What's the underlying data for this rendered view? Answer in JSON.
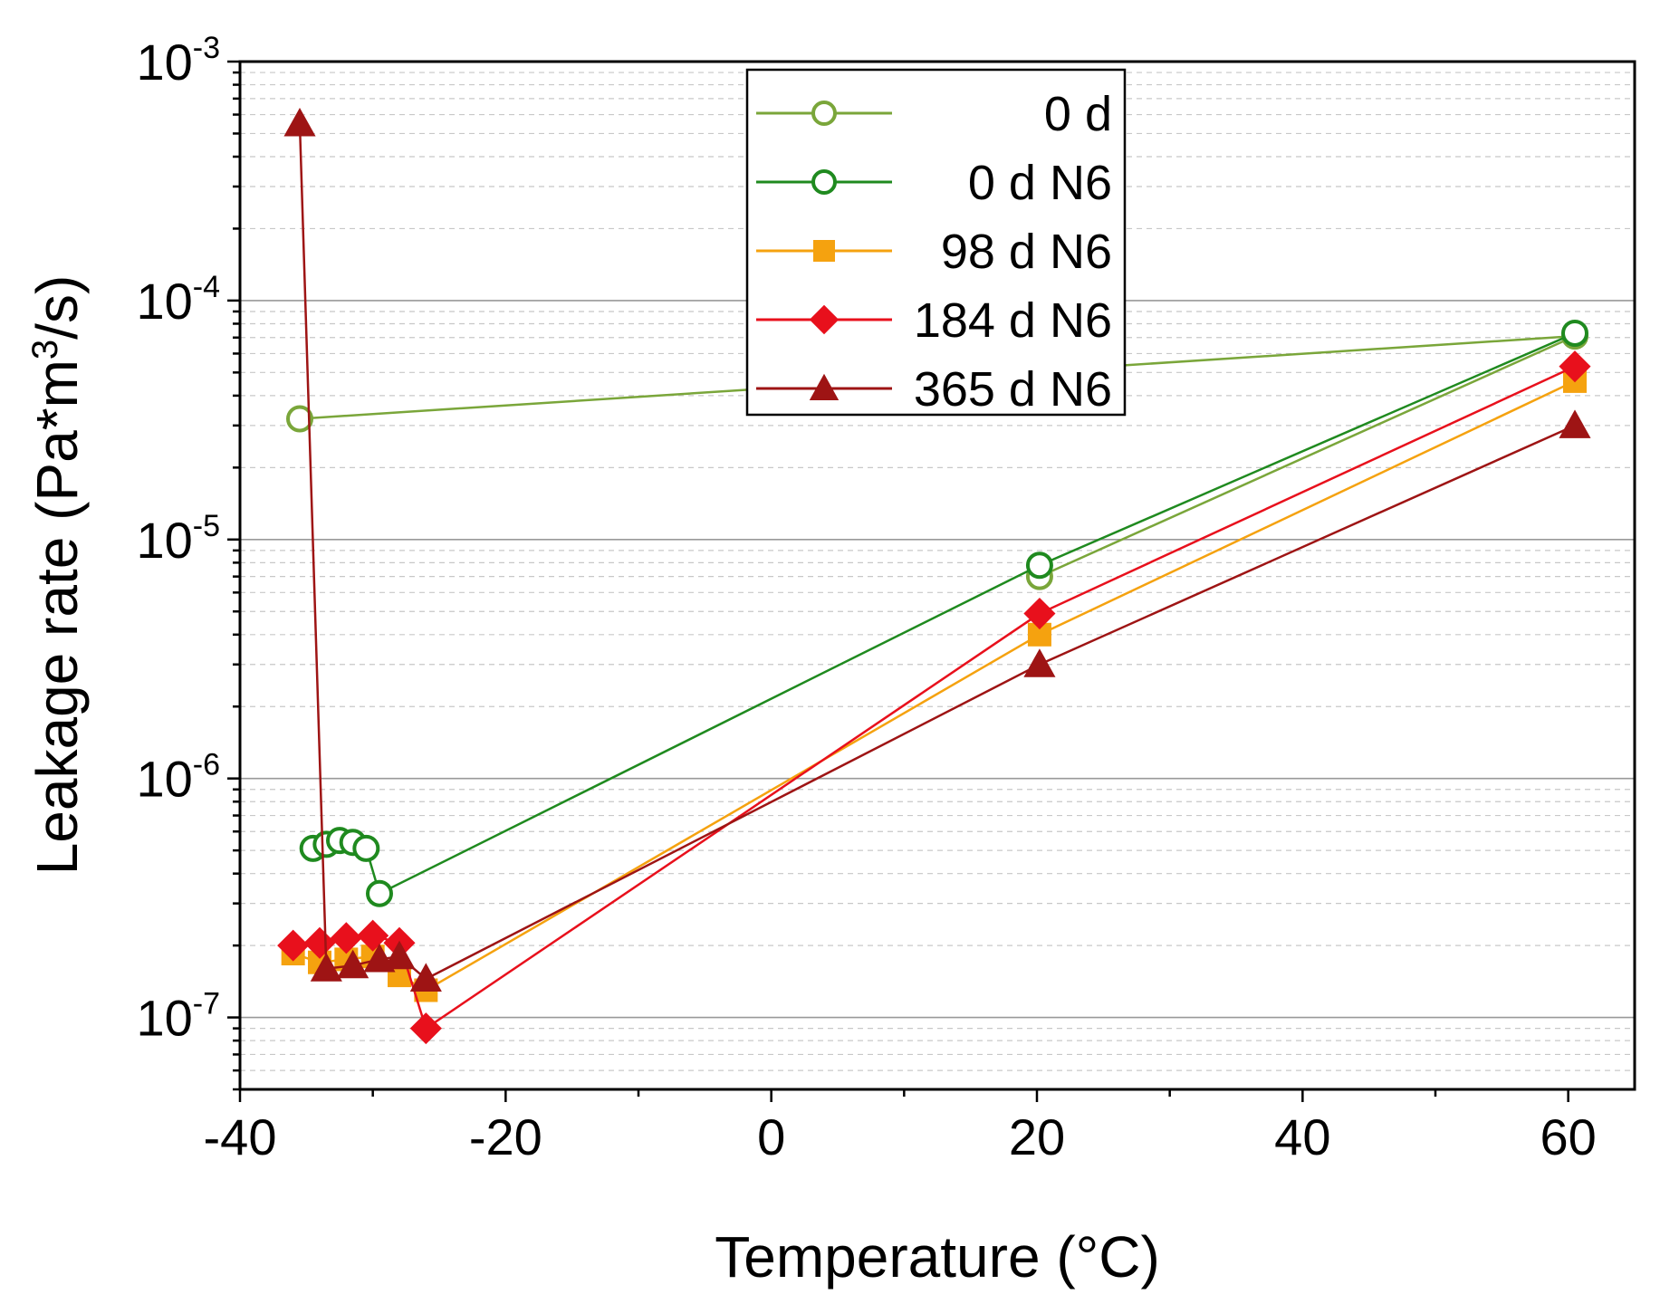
{
  "chart_data": {
    "type": "line",
    "xlabel": "Temperature (°C)",
    "ylabel": {
      "main": "Leakage rate (Pa*m",
      "sup": "3",
      "tail": "/s)"
    },
    "xlim": [
      -40,
      65
    ],
    "ylim": [
      5e-08,
      0.001
    ],
    "yscale": "log",
    "x_ticks": [
      -40,
      -20,
      0,
      20,
      40,
      60
    ],
    "x_tick_labels": [
      "-40",
      "-20",
      "0",
      "20",
      "40",
      "60"
    ],
    "y_ticks": [
      {
        "value": 1e-07,
        "base": "10",
        "exp": "-7"
      },
      {
        "value": 1e-06,
        "base": "10",
        "exp": "-6"
      },
      {
        "value": 1e-05,
        "base": "10",
        "exp": "-5"
      },
      {
        "value": 0.0001,
        "base": "10",
        "exp": "-4"
      },
      {
        "value": 0.001,
        "base": "10",
        "exp": "-3"
      }
    ],
    "grid": true,
    "legend_position": "top-center",
    "series": [
      {
        "name": "0 d",
        "color": "#7aa63a",
        "marker": "open-circle",
        "x": [
          -35.5,
          60.5,
          20.2
        ],
        "y": [
          3.2e-05,
          7.1e-05,
          7e-06
        ]
      },
      {
        "name": "0 d N6",
        "color": "#1f8a1f",
        "marker": "open-circle",
        "x": [
          -34.5,
          -33.5,
          -32.5,
          -31.5,
          -30.5,
          -29.5,
          20.2,
          60.5
        ],
        "y": [
          5.1e-07,
          5.3e-07,
          5.5e-07,
          5.4e-07,
          5.1e-07,
          3.3e-07,
          7.8e-06,
          7.3e-05
        ]
      },
      {
        "name": "98 d N6",
        "color": "#f5a20f",
        "marker": "square",
        "x": [
          -36,
          -34,
          -32,
          -30,
          -28,
          -26,
          20.2,
          60.5
        ],
        "y": [
          1.85e-07,
          1.7e-07,
          1.75e-07,
          1.8e-07,
          1.5e-07,
          1.3e-07,
          4e-06,
          4.6e-05
        ]
      },
      {
        "name": "184 d N6",
        "color": "#e8101c",
        "marker": "diamond",
        "x": [
          -36,
          -34,
          -32,
          -30,
          -28,
          -26,
          20.2,
          60.5
        ],
        "y": [
          2e-07,
          2.05e-07,
          2.15e-07,
          2.2e-07,
          2.05e-07,
          9e-08,
          4.9e-06,
          5.3e-05
        ]
      },
      {
        "name": "365 d N6",
        "color": "#9e1414",
        "marker": "triangle",
        "x": [
          -35.5,
          -33.5,
          -31.5,
          -29.5,
          -28,
          -26,
          20.2,
          60.5
        ],
        "y": [
          0.00055,
          1.6e-07,
          1.65e-07,
          1.75e-07,
          1.8e-07,
          1.45e-07,
          3e-06,
          3e-05
        ]
      }
    ]
  }
}
